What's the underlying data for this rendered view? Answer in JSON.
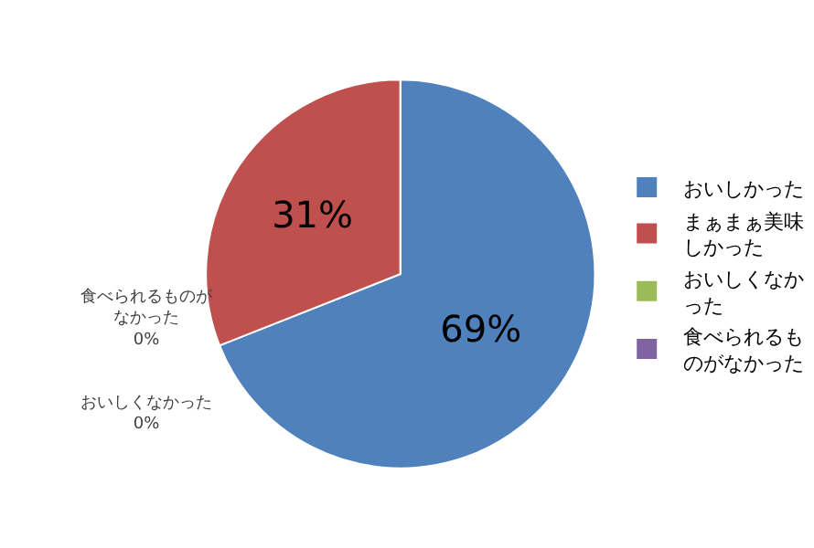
{
  "chart_data": {
    "type": "pie",
    "categories": [
      "おいしかった",
      "まぁまぁ美味しかった",
      "おいしくなかった",
      "食べられるものがなかった"
    ],
    "values": [
      69,
      31,
      0,
      0
    ],
    "colors": [
      "#4f81bd",
      "#c0504d",
      "#9bbb59",
      "#8064a2"
    ],
    "value_labels": [
      "69%",
      "31%",
      "0%",
      "0%"
    ],
    "legend": "right"
  }
}
